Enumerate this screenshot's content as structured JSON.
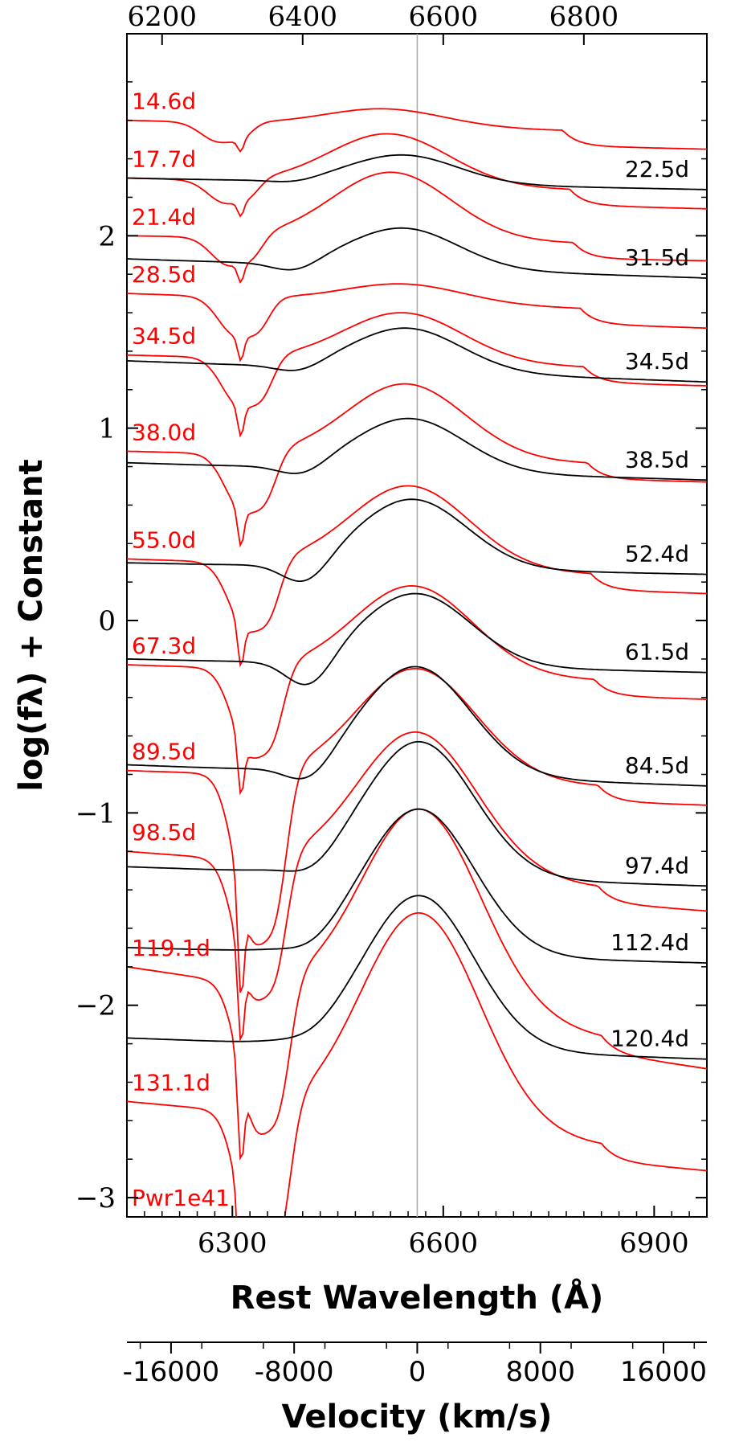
{
  "chart_data": {
    "type": "line",
    "xlabel": "Rest Wavelength (Å)",
    "ylabel": "log(fλ) + Constant",
    "secondary_xlabel": "Velocity (km/s)",
    "xlim": [
      6150,
      6975
    ],
    "ylim": [
      -3.1,
      3.05
    ],
    "x_ticks": [
      "6300",
      "6600",
      "6900"
    ],
    "top_x_ticks": [
      "6200",
      "6400",
      "6600",
      "6800"
    ],
    "y_ticks": [
      "−3",
      "−2",
      "−1",
      "0",
      "1",
      "2"
    ],
    "velocity_ticks": [
      "-16000",
      "-8000",
      "0",
      "8000",
      "16000"
    ],
    "reference_line_wavelength": 6563,
    "colors": {
      "model": "#ff0000",
      "observed": "#000000"
    },
    "model_series": [
      {
        "label": "14.6d",
        "left_y": 2.6,
        "trough_y": 2.53,
        "peak_y": 2.66,
        "peak_x": 6510,
        "right_y": 2.53,
        "width": 420,
        "trough_depth": 0.1,
        "profile": "model"
      },
      {
        "label": "17.7d",
        "left_y": 2.3,
        "trough_y": 2.2,
        "peak_y": 2.53,
        "peak_x": 6520,
        "right_y": 2.22,
        "width": 380,
        "trough_depth": 0.12,
        "profile": "model"
      },
      {
        "label": "21.4d",
        "left_y": 2.0,
        "trough_y": 1.87,
        "peak_y": 2.33,
        "peak_x": 6525,
        "right_y": 1.95,
        "width": 360,
        "trough_depth": 0.15,
        "profile": "model"
      },
      {
        "label": "28.5d",
        "left_y": 1.7,
        "trough_y": 1.55,
        "peak_y": 1.75,
        "peak_x": 6535,
        "right_y": 1.6,
        "width": 330,
        "trough_depth": 0.2,
        "profile": "model"
      },
      {
        "label": "34.5d",
        "left_y": 1.38,
        "trough_y": 1.15,
        "peak_y": 1.6,
        "peak_x": 6540,
        "right_y": 1.3,
        "width": 320,
        "trough_depth": 0.25,
        "profile": "model"
      },
      {
        "label": "38.0d",
        "left_y": 0.88,
        "trough_y": 0.6,
        "peak_y": 1.23,
        "peak_x": 6545,
        "right_y": 0.8,
        "width": 310,
        "trough_depth": 0.3,
        "profile": "model"
      },
      {
        "label": "55.0d",
        "left_y": 0.32,
        "trough_y": -0.05,
        "peak_y": 0.7,
        "peak_x": 6550,
        "right_y": 0.22,
        "width": 300,
        "trough_depth": 0.35,
        "profile": "model"
      },
      {
        "label": "67.3d",
        "left_y": -0.23,
        "trough_y": -0.65,
        "peak_y": 0.18,
        "peak_x": 6555,
        "right_y": -0.33,
        "width": 290,
        "trough_depth": 0.45,
        "profile": "model"
      },
      {
        "label": "89.5d",
        "left_y": -0.78,
        "trough_y": -1.6,
        "peak_y": -0.25,
        "peak_x": 6560,
        "right_y": -0.88,
        "width": 280,
        "trough_depth": 0.85,
        "profile": "model"
      },
      {
        "label": "98.5d",
        "left_y": -1.2,
        "trough_y": -1.85,
        "peak_y": -0.58,
        "peak_x": 6560,
        "right_y": -1.43,
        "width": 270,
        "trough_depth": 0.7,
        "profile": "model"
      },
      {
        "label": "119.1d",
        "left_y": -1.8,
        "trough_y": -2.5,
        "peak_y": -0.98,
        "peak_x": 6565,
        "right_y": -2.25,
        "width": 260,
        "trough_depth": 0.75,
        "profile": "model"
      },
      {
        "label": "131.1d",
        "left_y": -2.5,
        "trough_y": -3.05,
        "peak_y": -1.52,
        "peak_x": 6565,
        "right_y": -2.78,
        "width": 250,
        "trough_depth": 0.8,
        "profile": "model"
      }
    ],
    "extra_label": "Pwr1e41",
    "observed_series": [
      {
        "label": "22.5d",
        "left_y": 2.3,
        "peak_y": 2.42,
        "peak_x": 6540,
        "right_y": 2.24,
        "trough_y": 2.28,
        "profile": "obs"
      },
      {
        "label": "31.5d",
        "left_y": 1.88,
        "peak_y": 2.04,
        "peak_x": 6540,
        "right_y": 1.78,
        "trough_y": 1.82,
        "profile": "obs"
      },
      {
        "label": "34.5d",
        "left_y": 1.35,
        "peak_y": 1.52,
        "peak_x": 6545,
        "right_y": 1.24,
        "trough_y": 1.3,
        "profile": "obs"
      },
      {
        "label": "38.5d",
        "left_y": 0.82,
        "peak_y": 1.05,
        "peak_x": 6550,
        "right_y": 0.73,
        "trough_y": 0.75,
        "profile": "obs"
      },
      {
        "label": "52.4d",
        "left_y": 0.3,
        "peak_y": 0.63,
        "peak_x": 6555,
        "right_y": 0.24,
        "trough_y": 0.16,
        "profile": "obs"
      },
      {
        "label": "61.5d",
        "left_y": -0.2,
        "peak_y": 0.14,
        "peak_x": 6560,
        "right_y": -0.27,
        "trough_y": -0.38,
        "profile": "obs"
      },
      {
        "label": "84.5d",
        "left_y": -0.75,
        "peak_y": -0.24,
        "peak_x": 6560,
        "right_y": -0.86,
        "trough_y": -0.87,
        "profile": "obs"
      },
      {
        "label": "97.4d",
        "left_y": -1.28,
        "peak_y": -0.63,
        "peak_x": 6565,
        "right_y": -1.38,
        "trough_y": -1.35,
        "profile": "obs"
      },
      {
        "label": "112.4d",
        "left_y": -1.7,
        "peak_y": -0.98,
        "peak_x": 6565,
        "right_y": -1.78,
        "trough_y": -1.75,
        "profile": "obs"
      },
      {
        "label": "120.4d",
        "left_y": -2.17,
        "peak_y": -1.43,
        "peak_x": 6565,
        "right_y": -2.28,
        "trough_y": -2.2,
        "profile": "obs"
      }
    ]
  }
}
